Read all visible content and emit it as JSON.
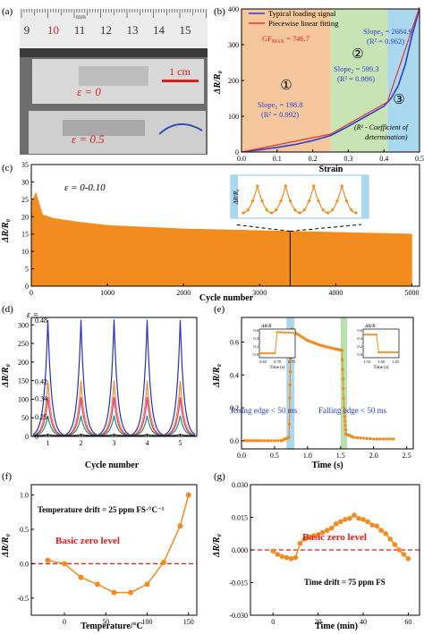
{
  "panel_labels": {
    "a": "(a)",
    "b": "(b)",
    "c": "(c)",
    "d": "(d)",
    "e": "(e)",
    "f": "(f)",
    "g": "(g)"
  },
  "photo": {
    "ruler_unit": "mm",
    "ruler_numbers": [
      "9",
      "10",
      "11",
      "12",
      "13",
      "14",
      "15"
    ],
    "scale_bar": "1 cm",
    "strain_zero": "ε = 0",
    "strain_max": "ε = 0.5",
    "colors": {
      "ruler_red": "#c0272d",
      "text_red": "#e01b1b",
      "bg": "#6e6e6e",
      "ruler": "#ececec"
    }
  },
  "chart_data": [
    {
      "id": "b",
      "type": "line",
      "xlabel": "Strain",
      "ylabel": "ΔR/R₀",
      "xlim": [
        0,
        0.5
      ],
      "ylim": [
        0,
        400
      ],
      "xticks": [
        "0.0",
        "0.1",
        "0.2",
        "0.3",
        "0.4",
        "0.5"
      ],
      "yticks": [
        "0",
        "100",
        "200",
        "300",
        "400"
      ],
      "regions": [
        {
          "x0": 0,
          "x1": 0.25,
          "color": "#f6c79c",
          "label": "①"
        },
        {
          "x0": 0.25,
          "x1": 0.41,
          "color": "#c9e4b4",
          "label": "②"
        },
        {
          "x0": 0.41,
          "x1": 0.5,
          "color": "#a9d8ef",
          "label": "③"
        }
      ],
      "series": [
        {
          "name": "Typical loading signal",
          "color": "#2b3fd6",
          "x": [
            0,
            0.05,
            0.1,
            0.15,
            0.2,
            0.25,
            0.3,
            0.35,
            0.4,
            0.42,
            0.44,
            0.46,
            0.48,
            0.5
          ],
          "y": [
            0,
            6,
            13,
            21,
            32,
            46,
            72,
            100,
            128,
            150,
            185,
            245,
            330,
            400
          ]
        },
        {
          "name": "Piecewise linear fitting",
          "color": "#e0392b",
          "x": [
            0,
            0.25,
            0.41,
            0.5
          ],
          "y": [
            0,
            50,
            140,
            405
          ]
        }
      ],
      "annotations": {
        "gf_prefix": "GF",
        "gf_sub": "MAX",
        "gf_value": " = 746.7",
        "slope1_prefix": "Slope",
        "slope1_sub": "1",
        "slope1_value": " = 198.8",
        "slope1_r2": "(R² = 0.992)",
        "slope2_prefix": "Slope",
        "slope2_sub": "2",
        "slope2_value": " = 599.3",
        "slope2_r2": "(R² = 0.986)",
        "slope3_prefix": "Slope",
        "slope3_sub": "3",
        "slope3_value": " = 2684.9",
        "slope3_r2": "(R² = 0.962)",
        "note_line1": "(R² - Coefficient of",
        "note_line2": "determination)"
      },
      "legend": "top-left"
    },
    {
      "id": "c",
      "type": "area",
      "xlabel": "Cycle number",
      "ylabel": "ΔR/R₀",
      "xlim": [
        0,
        5100
      ],
      "ylim": [
        0,
        35
      ],
      "xticks": [
        "0",
        "1000",
        "2000",
        "3000",
        "4000",
        "5000"
      ],
      "yticks": [
        "0",
        "5",
        "10",
        "15",
        "20",
        "25",
        "30",
        "35"
      ],
      "series": [
        {
          "name": "",
          "color": "#f28c1e",
          "x": [
            1,
            60,
            150,
            300,
            600,
            1000,
            2000,
            3000,
            4000,
            5000
          ],
          "y_max": [
            24,
            27,
            20.5,
            19.5,
            18.5,
            17.5,
            16.5,
            16,
            15.5,
            15
          ],
          "y_min": [
            0,
            0,
            0,
            0,
            0,
            0,
            0,
            0,
            0,
            0
          ]
        }
      ],
      "annotation": "ε = 0-0.10",
      "inset": {
        "ylabel": "ΔR/R₀",
        "peaks": 4,
        "color": "#f28c1e"
      }
    },
    {
      "id": "d",
      "type": "line",
      "xlabel": "Cycle number",
      "ylabel": "ΔR/R₀",
      "xlim": [
        0.5,
        5.5
      ],
      "ylim": [
        0,
        320
      ],
      "xticks": [
        "1",
        "2",
        "3",
        "4",
        "5"
      ],
      "yticks": [
        "0",
        "50",
        "100",
        "150",
        "200",
        "250",
        "300"
      ],
      "legend_title": "ε =",
      "series": [
        {
          "name": "0.48",
          "color": "#2430c8",
          "peak": 315
        },
        {
          "name": "0.42",
          "color": "#f58a1f",
          "peak": 150
        },
        {
          "name": "0.34",
          "color": "#d6338f",
          "peak": 105
        },
        {
          "name": "0.25",
          "color": "#1f8f7a",
          "peak": 55
        },
        {
          "name": "0",
          "color": "#222222",
          "peak": 3
        }
      ]
    },
    {
      "id": "e",
      "type": "line",
      "xlabel": "Time (s)",
      "ylabel": "ΔR/R₀",
      "xlim": [
        0,
        2.6
      ],
      "ylim": [
        -0.05,
        0.75
      ],
      "xticks": [
        "0.0",
        "0.5",
        "1.0",
        "1.5",
        "2.0",
        "2.5"
      ],
      "yticks": [
        "0.0",
        "0.2",
        "0.4",
        "0.6"
      ],
      "bands": [
        {
          "x0": 0.68,
          "x1": 0.8,
          "color": "#a9d8ef"
        },
        {
          "x0": 1.5,
          "x1": 1.6,
          "color": "#b8e0b0"
        }
      ],
      "series": [
        {
          "name": "",
          "color": "#f28c1e",
          "x": [
            0.05,
            0.3,
            0.6,
            0.72,
            0.74,
            0.76,
            0.8,
            1.0,
            1.2,
            1.4,
            1.52,
            1.55,
            1.58,
            1.7,
            2.0,
            2.3
          ],
          "y": [
            0.0,
            0.0,
            0.0,
            0.02,
            0.5,
            0.68,
            0.66,
            0.61,
            0.58,
            0.56,
            0.55,
            0.2,
            0.04,
            0.02,
            0.01,
            0.01
          ]
        }
      ],
      "rising_text": "Rising edge < 50 ms",
      "falling_text": "Falling edge < 50 ms",
      "inset_left": {
        "ylabel": "ΔR/R",
        "xlabel": "Time (s)",
        "xticks": [
          "0.65",
          "0.70",
          "0.75"
        ],
        "yticks": [
          "0.0",
          "0.2",
          "0.4",
          "0.6"
        ]
      },
      "inset_right": {
        "ylabel": "ΔR/R",
        "xlabel": "Time (s)",
        "xticks": [
          "1.55",
          "1.60",
          "1.65"
        ],
        "yticks": [
          "0.0",
          "0.2",
          "0.4",
          "0.6"
        ]
      }
    },
    {
      "id": "f",
      "type": "line",
      "xlabel": "Temperature/°C",
      "ylabel": "ΔR/R₀",
      "xlim": [
        -40,
        160
      ],
      "ylim": [
        -0.75,
        1.15
      ],
      "xticks": [
        "0",
        "50",
        "100",
        "150"
      ],
      "yticks": [
        "-0.5",
        "0.0",
        "0.5",
        "1.0"
      ],
      "series": [
        {
          "name": "",
          "color": "#f28c1e",
          "x": [
            -20,
            0,
            20,
            40,
            60,
            80,
            100,
            120,
            140,
            150
          ],
          "y": [
            0.05,
            0.0,
            -0.2,
            -0.3,
            -0.42,
            -0.42,
            -0.3,
            0.02,
            0.55,
            1.0
          ]
        }
      ],
      "zero_level": 0,
      "zero_label": "Basic zero level",
      "annotation": "Temperature drift = 25 ppm FS·°C⁻¹"
    },
    {
      "id": "g",
      "type": "line",
      "xlabel": "Time (min)",
      "ylabel": "ΔR/R₀",
      "xlim": [
        -10,
        65
      ],
      "ylim": [
        -0.03,
        0.03
      ],
      "xticks": [
        "0",
        "20",
        "40",
        "60"
      ],
      "yticks": [
        "-0.030",
        "-0.015",
        "0.000",
        "0.015",
        "0.030"
      ],
      "series": [
        {
          "name": "",
          "color": "#f28c1e",
          "x": [
            0,
            2,
            4,
            6,
            8,
            10,
            12,
            14,
            16,
            18,
            20,
            22,
            24,
            26,
            28,
            30,
            32,
            34,
            36,
            38,
            40,
            42,
            44,
            46,
            48,
            50,
            52,
            54,
            56,
            58,
            60
          ],
          "y": [
            -0.0005,
            -0.002,
            -0.003,
            -0.0035,
            -0.004,
            -0.0035,
            0.003,
            0.005,
            0.006,
            0.0065,
            0.007,
            0.008,
            0.009,
            0.01,
            0.012,
            0.013,
            0.014,
            0.0145,
            0.016,
            0.0145,
            0.014,
            0.013,
            0.0115,
            0.011,
            0.009,
            0.0075,
            0.005,
            0.0025,
            0.0,
            -0.002,
            -0.004
          ]
        }
      ],
      "zero_level": 0,
      "zero_label": "Basic zero level",
      "annotation": "Time drift = 75 ppm FS"
    }
  ]
}
